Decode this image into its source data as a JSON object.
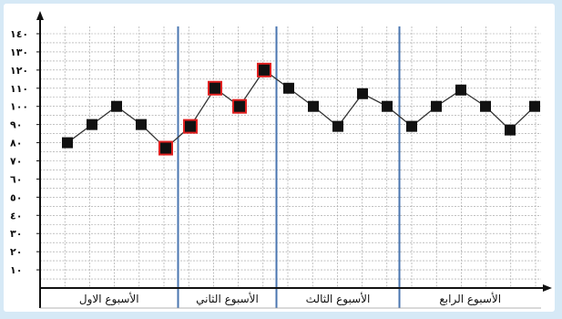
{
  "chart_data": {
    "type": "line",
    "y_tick_labels": [
      "١٠",
      "٢٠",
      "٣٠",
      "٤٠",
      "٥٠",
      "٦٠",
      "٧٠",
      "٨٠",
      "٩٠",
      "١٠٠",
      "١١٠",
      "١٢٠",
      "١٣٠",
      "١٤٠"
    ],
    "ylim": [
      0,
      140
    ],
    "grid": true,
    "weeks": [
      {
        "label": "الأسبوع الاول",
        "values": [
          80,
          90,
          100,
          90,
          77
        ]
      },
      {
        "label": "الأسبوع الثاني",
        "values": [
          89,
          110,
          100,
          120
        ]
      },
      {
        "label": "الأسبوع الثالث",
        "values": [
          110,
          100,
          89,
          107,
          100
        ]
      },
      {
        "label": "الأسبوع الرابع",
        "values": [
          89,
          100,
          109,
          100,
          87,
          100
        ]
      }
    ],
    "highlighted_points": [
      4,
      5,
      6,
      7,
      8
    ],
    "colors": {
      "line": "#333333",
      "marker": "#111111",
      "highlight": "#e02020",
      "grid": "#9a9a9a",
      "week_divider": "#4a76b0",
      "axis": "#111111"
    }
  }
}
